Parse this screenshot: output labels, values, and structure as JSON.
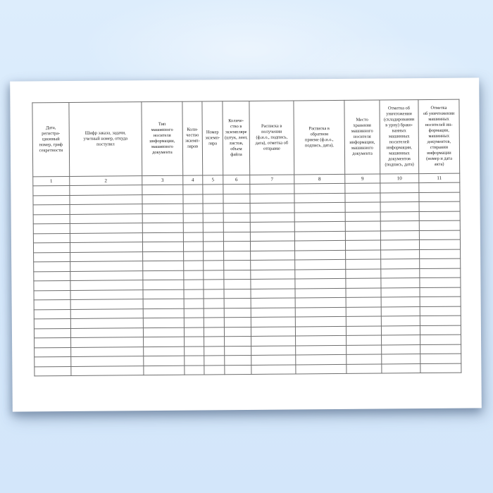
{
  "background": {
    "top_color": "#ddedfc",
    "bottom_color": "#d3e6fa"
  },
  "paper": {
    "color": "#ffffff"
  },
  "table": {
    "border_color": "#6e6e6e",
    "columns": [
      {
        "number": "1",
        "label": "Дата,\nрегистра-\nционный\nномер, гриф\nсекретности"
      },
      {
        "number": "2",
        "label": "Шифр заказа, задачи,\nучетный номер, откуда\nпоступил"
      },
      {
        "number": "3",
        "label": "Тип\nмашинного\nносителя\nинформации,\nмашинного\nдокумента"
      },
      {
        "number": "4",
        "label": "Коли-\nчество\nэкземп-\nляров"
      },
      {
        "number": "5",
        "label": "Номер\nэкземп-\nляра"
      },
      {
        "number": "6",
        "label": "Количе-\nство в\nэкземпляре\n(штук, лент,\nлистов,\nобъем\nфайла"
      },
      {
        "number": "7",
        "label": "Расписка в\nполучении\n(ф.и.о., подпись,\nдата), отметка об\nотправке"
      },
      {
        "number": "8",
        "label": "Расписка в\nобратном\nприеме (ф.и.о.,\nподпись, дата),"
      },
      {
        "number": "9",
        "label": "Место\nхранения\nмашинного\nносителя\nинформации,\nмашинного\nдокумента"
      },
      {
        "number": "10",
        "label": "Отметка об\nуничтожении\n(складировании\nв урну) брако-\nванных\nмашинных\nносителей\nинформации,\nмашинных\nдокументов\n(подпись, дата)"
      },
      {
        "number": "11",
        "label": "Отметка\nоб уничтожении\nмашинных\nносителей ин-\nформации,\nмашинных\nдокументов,\nстирании\nинформации\n(номер и  дата\nакта)"
      }
    ],
    "empty_row_count": 20,
    "cell_value": ""
  }
}
